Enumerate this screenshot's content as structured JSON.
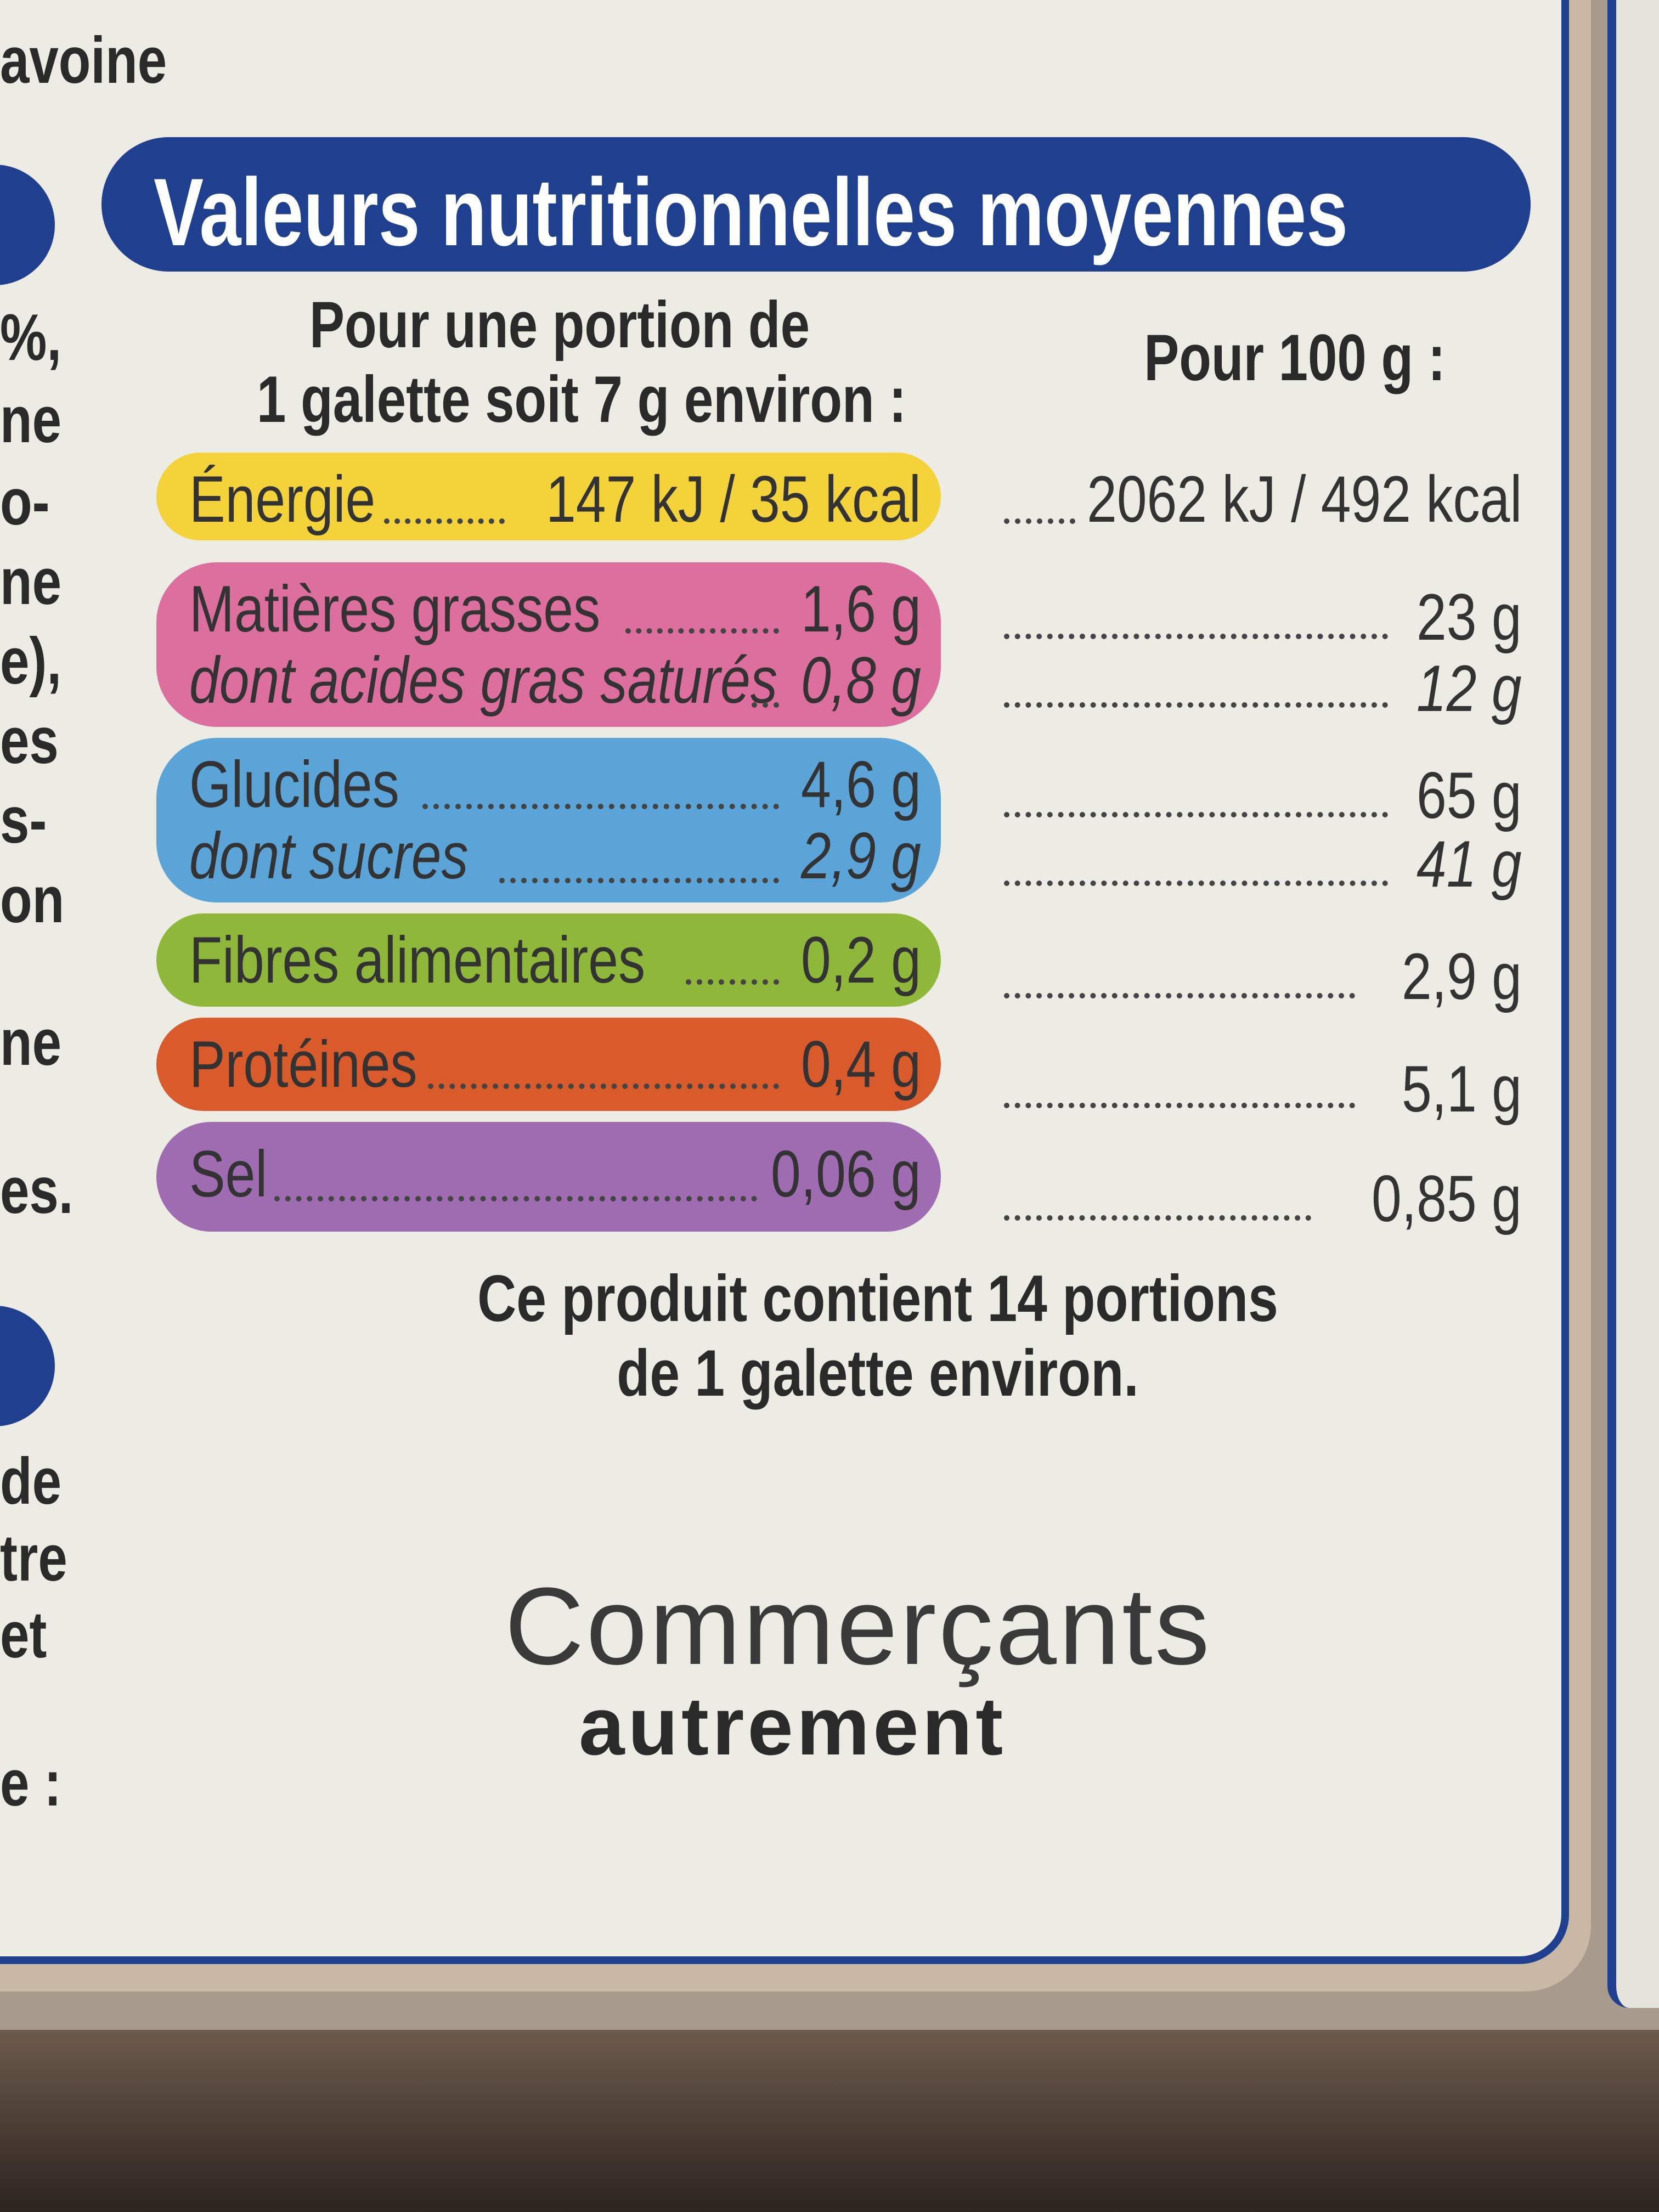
{
  "left_fragments": {
    "top": "avoine",
    "lines": [
      "%,",
      "ne",
      "o-",
      "ne",
      "e),",
      "es",
      "s-",
      "on",
      "ne",
      "es.",
      "de",
      "tre",
      "et",
      "e :"
    ]
  },
  "title": "Valeurs nutritionnelles moyennes",
  "headers": {
    "portion_line1": "Pour une portion de",
    "portion_line2": "1 galette soit 7 g environ  :",
    "per100": "Pour 100 g :"
  },
  "rows": [
    {
      "label": "Énergie",
      "value": "147 kJ / 35 kcal",
      "per100": "2062 kJ / 492 kcal",
      "color": "#f3d23a"
    },
    {
      "label": "Matières grasses",
      "value": "1,6 g",
      "per100": "23 g",
      "color": "#dd6f9e"
    },
    {
      "label": "dont acides gras saturés",
      "value": "0,8 g",
      "per100": "12 g",
      "color": "#dd6f9e"
    },
    {
      "label": "Glucides",
      "value": "4,6 g",
      "per100": "65 g",
      "color": "#5aa4d8"
    },
    {
      "label": "dont sucres",
      "value": "2,9 g",
      "per100": "41 g",
      "color": "#5aa4d8"
    },
    {
      "label": "Fibres alimentaires",
      "value": "0,2 g",
      "per100": "2,9 g",
      "color": "#8fb73a"
    },
    {
      "label": "Protéines",
      "value": "0,4 g",
      "per100": "5,1 g",
      "color": "#d95b2c"
    },
    {
      "label": "Sel",
      "value": "0,06 g",
      "per100": "0,85 g",
      "color": "#9f6cb1"
    }
  ],
  "footer": {
    "line1": "Ce produit contient 14 portions",
    "line2": "de 1 galette environ."
  },
  "brand": {
    "line1": "Commerçants",
    "line2": "autrement"
  },
  "colors": {
    "navy": "#1f3f8f",
    "panel": "#ecebe4"
  }
}
